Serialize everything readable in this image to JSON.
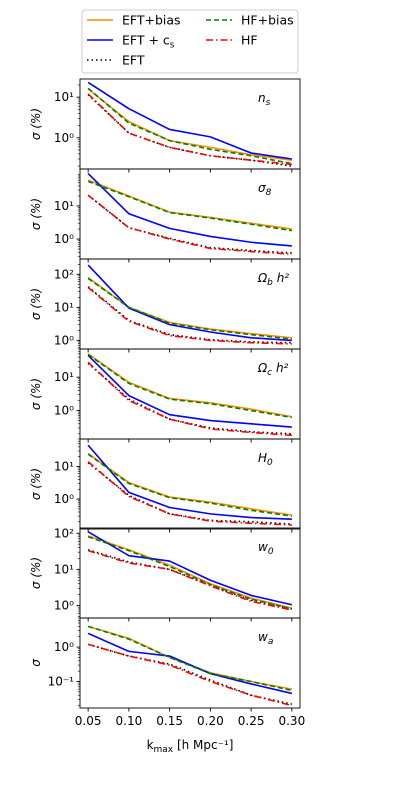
{
  "chart_data": {
    "type": "line",
    "xlabel": "k_max [h Mpc⁻¹]",
    "xlim": [
      0.04,
      0.31
    ],
    "x": [
      0.05,
      0.1,
      0.15,
      0.2,
      0.25,
      0.3
    ],
    "x_ticks": [
      "0.05",
      "0.10",
      "0.15",
      "0.20",
      "0.25",
      "0.30"
    ],
    "ylabel": "σ (%)",
    "yscale": "log",
    "series_styles": [
      {
        "name": "EFT+bias",
        "color": "#ff8c00",
        "dash": "solid"
      },
      {
        "name": "EFT + c_s",
        "color": "#0000ff",
        "dash": "solid"
      },
      {
        "name": "EFT",
        "color": "#000000",
        "dash": "dotted"
      },
      {
        "name": "HF+bias",
        "color": "#008000",
        "dash": "dashed"
      },
      {
        "name": "HF",
        "color": "#ff0000",
        "dash": "dashdot"
      }
    ],
    "legend": {
      "location": "top, outside",
      "columns": 2
    },
    "panels": [
      {
        "label": "n_s",
        "ylabel": "σ (%)",
        "ylim": [
          0.17,
          28
        ],
        "yticks": [
          1,
          10
        ],
        "ytick_labels": [
          "10⁰",
          "10¹"
        ],
        "series": {
          "EFT+bias": [
            16,
            2.5,
            0.85,
            0.58,
            0.38,
            0.28
          ],
          "EFT + c_s": [
            23,
            5.2,
            1.6,
            1.05,
            0.42,
            0.3
          ],
          "EFT": [
            11.5,
            1.3,
            0.58,
            0.36,
            0.28,
            0.2
          ],
          "HF+bias": [
            16.5,
            2.3,
            0.85,
            0.52,
            0.36,
            0.23
          ],
          "HF": [
            12,
            1.3,
            0.58,
            0.36,
            0.28,
            0.22
          ]
        }
      },
      {
        "label": "σ_8",
        "ylabel": "σ (%)",
        "ylim": [
          0.25,
          130
        ],
        "yticks": [
          1,
          10
        ],
        "ytick_labels": [
          "10⁰",
          "10¹"
        ],
        "series": {
          "EFT+bias": [
            60,
            20,
            6.5,
            4.5,
            3.0,
            2.0
          ],
          "EFT + c_s": [
            95,
            5.8,
            2.1,
            1.2,
            0.8,
            0.62
          ],
          "EFT": [
            21,
            2.2,
            1.05,
            0.55,
            0.45,
            0.38
          ],
          "HF+bias": [
            55,
            19,
            6.3,
            4.3,
            2.8,
            1.8
          ],
          "HF": [
            21,
            2.2,
            1.0,
            0.52,
            0.42,
            0.35
          ]
        }
      },
      {
        "label": "Ω_b h²",
        "ylabel": "σ (%)",
        "ylim": [
          0.55,
          290
        ],
        "yticks": [
          1,
          10,
          100
        ],
        "ytick_labels": [
          "10⁰",
          "10¹",
          "10²"
        ],
        "series": {
          "EFT+bias": [
            80,
            10,
            3.5,
            2.2,
            1.6,
            1.2
          ],
          "EFT + c_s": [
            190,
            9.5,
            3.0,
            1.8,
            1.2,
            1.0
          ],
          "EFT": [
            42,
            4.0,
            1.5,
            1.05,
            0.9,
            0.85
          ],
          "HF+bias": [
            75,
            10,
            3.3,
            2.1,
            1.5,
            1.1
          ],
          "HF": [
            40,
            3.8,
            1.4,
            1.0,
            0.85,
            0.78
          ]
        }
      },
      {
        "label": "Ω_c h²",
        "ylabel": "σ (%)",
        "ylim": [
          0.14,
          70
        ],
        "yticks": [
          1,
          10
        ],
        "ytick_labels": [
          "10⁰",
          "10¹"
        ],
        "series": {
          "EFT+bias": [
            50,
            7.0,
            2.3,
            1.7,
            1.1,
            0.65
          ],
          "EFT + c_s": [
            45,
            2.8,
            0.75,
            0.5,
            0.4,
            0.32
          ],
          "EFT": [
            26,
            2.2,
            0.55,
            0.3,
            0.23,
            0.2
          ],
          "HF+bias": [
            48,
            6.5,
            2.2,
            1.6,
            1.0,
            0.62
          ],
          "HF": [
            28,
            2.0,
            0.55,
            0.28,
            0.22,
            0.18
          ]
        }
      },
      {
        "label": "H_0",
        "ylabel": "σ (%)",
        "ylim": [
          0.12,
          70
        ],
        "yticks": [
          1,
          10
        ],
        "ytick_labels": [
          "10⁰",
          "10¹"
        ],
        "series": {
          "EFT+bias": [
            25,
            3.2,
            1.15,
            0.8,
            0.5,
            0.32
          ],
          "EFT + c_s": [
            45,
            1.6,
            0.55,
            0.35,
            0.27,
            0.24
          ],
          "EFT": [
            13,
            1.3,
            0.35,
            0.22,
            0.2,
            0.17
          ],
          "HF+bias": [
            24,
            3.0,
            1.1,
            0.75,
            0.45,
            0.3
          ],
          "HF": [
            14,
            1.2,
            0.35,
            0.21,
            0.18,
            0.16
          ]
        }
      },
      {
        "label": "w_0",
        "ylabel": "σ (%)",
        "ylim": [
          0.45,
          140
        ],
        "yticks": [
          1,
          10,
          100
        ],
        "ytick_labels": [
          "10⁰",
          "10¹",
          "10²"
        ],
        "series": {
          "EFT+bias": [
            85,
            35,
            13,
            4.0,
            1.6,
            0.85
          ],
          "EFT + c_s": [
            110,
            24,
            17,
            5.0,
            1.9,
            1.05
          ],
          "EFT": [
            35,
            16,
            10,
            3.6,
            1.4,
            0.8
          ],
          "HF+bias": [
            80,
            33,
            12,
            3.8,
            1.5,
            0.8
          ],
          "HF": [
            33,
            15,
            10,
            3.5,
            1.3,
            0.75
          ]
        }
      },
      {
        "label": "w_a",
        "ylabel": "σ",
        "ylim": [
          0.017,
          7
        ],
        "yticks": [
          0.1,
          1
        ],
        "ytick_labels": [
          "10⁻¹",
          "10⁰"
        ],
        "series": {
          "EFT+bias": [
            4.0,
            1.8,
            0.5,
            0.18,
            0.1,
            0.06
          ],
          "EFT + c_s": [
            2.5,
            0.75,
            0.55,
            0.17,
            0.085,
            0.045
          ],
          "EFT": [
            1.2,
            0.55,
            0.32,
            0.11,
            0.04,
            0.022
          ],
          "HF+bias": [
            4.0,
            1.7,
            0.5,
            0.17,
            0.1,
            0.055
          ],
          "HF": [
            1.2,
            0.55,
            0.3,
            0.1,
            0.04,
            0.02
          ]
        }
      }
    ]
  }
}
